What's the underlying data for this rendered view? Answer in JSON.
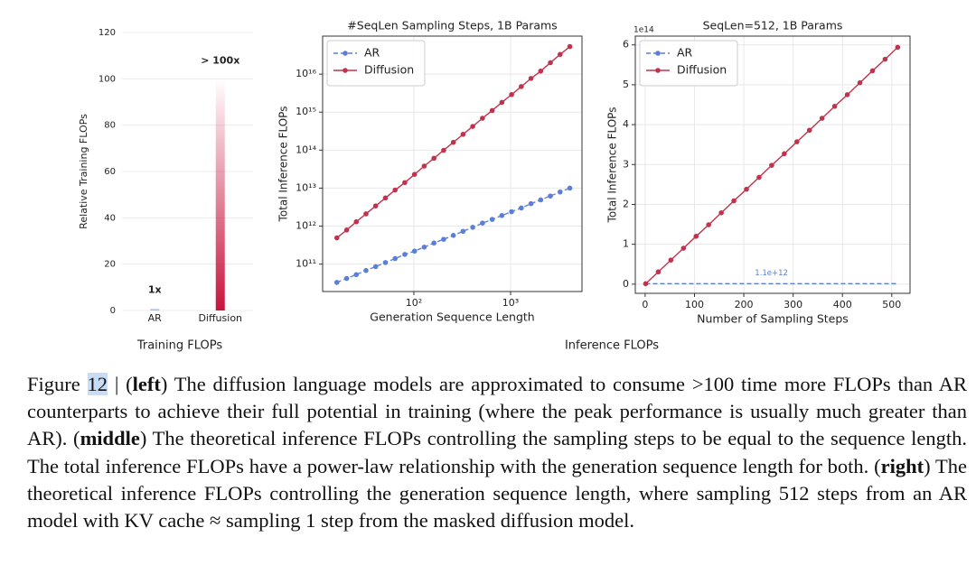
{
  "chart_data": [
    {
      "type": "bar",
      "ylabel": "Relative Training FLOPs",
      "categories": [
        "AR",
        "Diffusion"
      ],
      "values": [
        1,
        100
      ],
      "value_labels": [
        "1x",
        "> 100x"
      ],
      "colors": [
        "#8fa8e8",
        "#c8143c"
      ],
      "fill_style": "gradient",
      "ylim": [
        0,
        120
      ],
      "yticks": [
        0,
        20,
        40,
        60,
        80,
        100,
        120
      ],
      "grid": true
    },
    {
      "type": "line",
      "title": "#SeqLen Sampling Steps, 1B Params",
      "xlabel": "Generation Sequence Length",
      "ylabel": "Total Inference FLOPs",
      "xscale": "log",
      "yscale": "log",
      "grid": true,
      "legend": "upper left",
      "x": [
        16,
        20.2,
        25.4,
        32,
        40.3,
        50.8,
        64,
        80.6,
        101.6,
        128,
        161.3,
        203.2,
        256,
        322.5,
        406.4,
        512,
        645.1,
        812.7,
        1024,
        1290.2,
        1625.5,
        2048,
        2580.3,
        3251,
        4096
      ],
      "series": [
        {
          "name": "AR",
          "color": "#5b7fd9",
          "linestyle": "dashed",
          "marker": "o",
          "values": [
            33000000000.0,
            42000000000.0,
            53000000000.0,
            68000000000.0,
            86000000000.0,
            110000000000.0,
            140000000000.0,
            180000000000.0,
            220000000000.0,
            280000000000.0,
            360000000000.0,
            450000000000.0,
            570000000000.0,
            730000000000.0,
            930000000000.0,
            1200000000000.0,
            1500000000000.0,
            1900000000000.0,
            2400000000000.0,
            3000000000000.0,
            3900000000000.0,
            4900000000000.0,
            6200000000000.0,
            7900000000000.0,
            10000000000000.0
          ]
        },
        {
          "name": "Diffusion",
          "color": "#c0334d",
          "linestyle": "solid",
          "marker": "o",
          "values": [
            490000000000.0,
            790000000000.0,
            1300000000000.0,
            2100000000000.0,
            3400000000000.0,
            5500000000000.0,
            8900000000000.0,
            14000000000000.0,
            23000000000000.0,
            38000000000000.0,
            61000000000000.0,
            99000000000000.0,
            160000000000000.0,
            260000000000000.0,
            420000000000000.0,
            690000000000000.0,
            1100000000000000.0,
            1800000000000000.0,
            2900000000000000.0,
            4700000000000000.0,
            7700000000000000.0,
            1.2e+16,
            2e+16,
            3.3e+16,
            5.3e+16
          ]
        }
      ],
      "xlim": [
        11.4,
        5470
      ],
      "xticks": [
        {
          "value": 100,
          "label": "10²"
        },
        {
          "value": 1000,
          "label": "10³"
        }
      ],
      "ylim": [
        19000000000.0,
        1e+17
      ],
      "yticks": [
        {
          "value": 100000000000.0,
          "label": "10¹¹"
        },
        {
          "value": 1000000000000.0,
          "label": "10¹²"
        },
        {
          "value": 10000000000000.0,
          "label": "10¹³"
        },
        {
          "value": 100000000000000.0,
          "label": "10¹⁴"
        },
        {
          "value": 1000000000000000.0,
          "label": "10¹⁵"
        },
        {
          "value": 1e+16,
          "label": "10¹⁶"
        }
      ]
    },
    {
      "type": "line",
      "title": "SeqLen=512, 1B Params",
      "xlabel": "Number of Sampling Steps",
      "ylabel": "Total Inference FLOPs",
      "offset_label": "1e14",
      "xscale": "linear",
      "yscale": "linear",
      "grid": true,
      "legend": "upper left",
      "x": [
        1,
        26.55,
        52.1,
        77.65,
        103.2,
        128.75,
        154.3,
        179.85,
        205.4,
        230.95,
        256.5,
        282.05,
        307.6,
        333.15,
        358.7,
        384.25,
        409.8,
        435.35,
        460.9,
        486.45,
        512
      ],
      "series": [
        {
          "name": "AR",
          "color": "#5b7fd9",
          "linestyle": "dashed",
          "marker": "none",
          "values": [
            1100000000000.0,
            1100000000000.0,
            1100000000000.0,
            1100000000000.0,
            1100000000000.0,
            1100000000000.0,
            1100000000000.0,
            1100000000000.0,
            1100000000000.0,
            1100000000000.0,
            1100000000000.0,
            1100000000000.0,
            1100000000000.0,
            1100000000000.0,
            1100000000000.0,
            1100000000000.0,
            1100000000000.0,
            1100000000000.0,
            1100000000000.0,
            1100000000000.0,
            1100000000000.0
          ]
        },
        {
          "name": "Diffusion",
          "color": "#c0334d",
          "linestyle": "solid",
          "marker": "o",
          "values": [
            1160000000000.0,
            30800000000000.0,
            60400000000000.0,
            90100000000000.0,
            120000000000000.0,
            149000000000000.0,
            179000000000000.0,
            209000000000000.0,
            238000000000000.0,
            268000000000000.0,
            298000000000000.0,
            327000000000000.0,
            357000000000000.0,
            386000000000000.0,
            416000000000000.0,
            446000000000000.0,
            475000000000000.0,
            505000000000000.0,
            535000000000000.0,
            564000000000000.0,
            594000000000000.0
          ]
        }
      ],
      "annotation": {
        "text": "1.1e+12",
        "x": 256,
        "y": 1100000000000.0
      },
      "xlim": [
        -20,
        537
      ],
      "xticks": [
        0,
        100,
        200,
        300,
        400,
        500
      ],
      "ylim": [
        -23000000000000.0,
        622000000000000.0
      ],
      "yticks": [
        0,
        {
          "value": 100000000000000.0,
          "label": "1"
        },
        {
          "value": 200000000000000.0,
          "label": "2"
        },
        {
          "value": 300000000000000.0,
          "label": "3"
        },
        {
          "value": 400000000000000.0,
          "label": "4"
        },
        {
          "value": 500000000000000.0,
          "label": "5"
        },
        {
          "value": 600000000000000.0,
          "label": "6"
        }
      ]
    }
  ],
  "group_labels": [
    "Training FLOPs",
    "Inference FLOPs"
  ],
  "caption": {
    "runs": [
      {
        "text": "Figure ",
        "bold": false
      },
      {
        "text": "12",
        "bold": false,
        "highlight": true
      },
      {
        "text": " | (",
        "bold": false
      },
      {
        "text": "left",
        "bold": true
      },
      {
        "text": ") The diffusion language models are approximated to consume >100 time more FLOPs than AR counterparts to achieve their full potential in training (where the peak performance is usually much greater than AR). (",
        "bold": false
      },
      {
        "text": "middle",
        "bold": true
      },
      {
        "text": ") The theoretical inference FLOPs controlling the sampling steps to be equal to the sequence length. The total inference FLOPs have a power-law relationship with the generation sequence length for both. (",
        "bold": false
      },
      {
        "text": "right",
        "bold": true
      },
      {
        "text": ") The theoretical inference FLOPs controlling the generation sequence length, where sampling 512 steps from an AR model with KV cache ≈ sampling 1 step from the masked diffusion model.",
        "bold": false
      }
    ]
  }
}
